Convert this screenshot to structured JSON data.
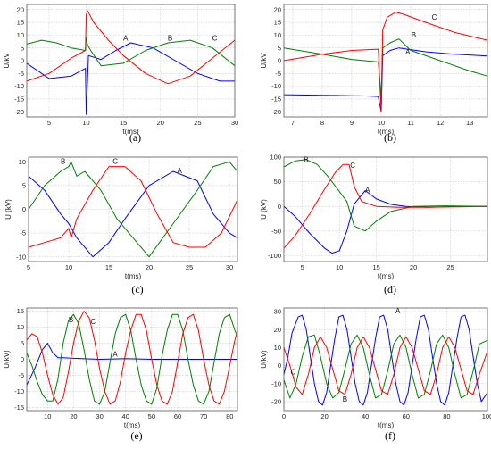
{
  "chart_data": [
    {
      "type": "line",
      "caption": "(a)",
      "xlabel": "t(ms)",
      "ylabel": "U/kV",
      "xlim": [
        2,
        30
      ],
      "ylim": [
        -22,
        22
      ],
      "xticks": [
        5,
        10,
        15,
        20,
        25,
        30
      ],
      "yticks": [
        -20,
        -15,
        -10,
        -5,
        0,
        5,
        10,
        15,
        20
      ],
      "grid": true,
      "annotations": [
        {
          "text": "A",
          "x": 15.3,
          "y": 7.8
        },
        {
          "text": "B",
          "x": 21.3,
          "y": 7.8
        },
        {
          "text": "C",
          "x": 27.3,
          "y": 7.8
        }
      ],
      "series": [
        {
          "name": "A",
          "color": "#0000ff",
          "x": [
            2,
            5,
            8,
            9.9,
            10,
            10.3,
            12,
            14,
            16,
            19,
            22,
            25,
            28,
            30
          ],
          "y": [
            -1,
            -7,
            -6,
            -3,
            -21,
            2,
            0.5,
            4,
            7,
            5,
            0,
            -5,
            -8,
            -8
          ]
        },
        {
          "name": "B",
          "color": "#008000",
          "x": [
            2,
            4,
            6,
            8,
            9.9,
            10,
            10.2,
            10.6,
            12,
            15,
            18,
            21,
            24,
            27,
            30
          ],
          "y": [
            6.5,
            8,
            7,
            5,
            4,
            9,
            6,
            4,
            -2,
            -1,
            4,
            7,
            8,
            5,
            -2
          ]
        },
        {
          "name": "C",
          "color": "#ff0000",
          "x": [
            2,
            5,
            8,
            9.9,
            10,
            10.2,
            11,
            13,
            15,
            18,
            21,
            24,
            27,
            30
          ],
          "y": [
            -8,
            -5,
            1,
            4,
            18,
            19.5,
            15,
            8,
            2,
            -5,
            -9,
            -6,
            1,
            8
          ]
        }
      ]
    },
    {
      "type": "line",
      "caption": "(b)",
      "xlabel": "t(ms)",
      "ylabel": "U/kV",
      "xlim": [
        6.7,
        13.6
      ],
      "ylim": [
        -22,
        22
      ],
      "xticks": [
        7,
        8,
        9,
        10,
        11,
        12,
        13
      ],
      "yticks": [
        -20,
        -15,
        -10,
        -5,
        0,
        5,
        10,
        15,
        20
      ],
      "grid": true,
      "annotations": [
        {
          "text": "C",
          "x": 11.8,
          "y": 16
        },
        {
          "text": "B",
          "x": 11.1,
          "y": 9
        },
        {
          "text": "A",
          "x": 10.9,
          "y": 2.5
        }
      ],
      "series": [
        {
          "name": "A",
          "color": "#0000ff",
          "x": [
            6.7,
            8,
            9.5,
            9.9,
            10,
            10.05,
            10.3,
            10.6,
            11.5,
            12.5,
            13.6
          ],
          "y": [
            -13.3,
            -13.5,
            -13.8,
            -14,
            -20,
            2,
            4,
            5,
            3.5,
            2.5,
            1.8
          ]
        },
        {
          "name": "B",
          "color": "#008000",
          "x": [
            6.7,
            8,
            9,
            9.9,
            10,
            10.05,
            10.3,
            10.6,
            11,
            12,
            13,
            13.6
          ],
          "y": [
            5,
            2.5,
            0.5,
            -0.5,
            -14,
            5,
            7,
            8.5,
            4,
            0,
            -4,
            -6
          ]
        },
        {
          "name": "C",
          "color": "#ff0000",
          "x": [
            6.7,
            8,
            9,
            9.9,
            10,
            10.05,
            10.2,
            10.5,
            10.8,
            11.5,
            12.5,
            13.6
          ],
          "y": [
            0,
            2.5,
            4,
            4.5,
            -20,
            12,
            17,
            19,
            18,
            15,
            11,
            8
          ]
        }
      ]
    },
    {
      "type": "line",
      "caption": "(c)",
      "xlabel": "t(ms)",
      "ylabel": "U (kV)",
      "xlim": [
        5,
        31
      ],
      "ylim": [
        -11,
        11
      ],
      "xticks": [
        5,
        10,
        15,
        20,
        25,
        30
      ],
      "yticks": [
        -10,
        -5,
        0,
        5,
        10
      ],
      "grid": true,
      "annotations": [
        {
          "text": "B",
          "x": 9.3,
          "y": 9.6
        },
        {
          "text": "C",
          "x": 15.8,
          "y": 9.6
        },
        {
          "text": "A",
          "x": 23.8,
          "y": 7.6
        }
      ],
      "series": [
        {
          "name": "A",
          "color": "#0000ff",
          "x": [
            5,
            7,
            9,
            10,
            11,
            13,
            15,
            17,
            20,
            23,
            26,
            28,
            30,
            31
          ],
          "y": [
            7,
            4,
            -1,
            -3,
            -6,
            -10,
            -7,
            -2,
            5,
            8,
            6,
            -1,
            -5,
            -6
          ]
        },
        {
          "name": "B",
          "color": "#008000",
          "x": [
            5,
            7,
            9,
            10,
            10.3,
            11,
            12,
            14,
            16,
            18,
            20,
            23,
            26,
            28,
            30,
            31
          ],
          "y": [
            0,
            5,
            8,
            9,
            10,
            7,
            8,
            4,
            -2,
            -6,
            -10,
            -3,
            4,
            9,
            10,
            8
          ]
        },
        {
          "name": "C",
          "color": "#ff0000",
          "x": [
            5,
            7,
            9,
            10,
            10.3,
            11,
            13,
            15,
            17,
            19,
            21,
            23,
            25,
            27,
            29,
            31
          ],
          "y": [
            -8,
            -7,
            -6,
            -4,
            -6,
            -2,
            4,
            9,
            9,
            6,
            -1,
            -7,
            -8,
            -8,
            -5,
            2
          ]
        }
      ]
    },
    {
      "type": "line",
      "caption": "(d)",
      "xlabel": "t(ms)",
      "ylabel": "U (kV)",
      "xlim": [
        2.5,
        30
      ],
      "ylim": [
        -112,
        100
      ],
      "xticks": [
        5,
        10,
        15,
        20,
        25
      ],
      "yticks": [
        -100,
        -50,
        0,
        50,
        100
      ],
      "grid": true,
      "annotations": [
        {
          "text": "B",
          "x": 5.5,
          "y": 90
        },
        {
          "text": "C",
          "x": 11.8,
          "y": 78
        },
        {
          "text": "A",
          "x": 13.8,
          "y": 28
        }
      ],
      "series": [
        {
          "name": "A",
          "color": "#0000ff",
          "x": [
            2.5,
            4,
            6,
            8,
            9,
            10,
            11,
            12,
            13.5,
            15,
            17,
            19,
            22,
            26,
            30
          ],
          "y": [
            0,
            -20,
            -55,
            -85,
            -95,
            -90,
            -50,
            5,
            32,
            15,
            4,
            0,
            -2,
            0,
            0
          ]
        },
        {
          "name": "B",
          "color": "#008000",
          "x": [
            2.5,
            4,
            5.5,
            7,
            8.5,
            10,
            11,
            12,
            13.5,
            15,
            17,
            20,
            24,
            30
          ],
          "y": [
            80,
            92,
            95,
            85,
            60,
            30,
            10,
            -40,
            -50,
            -30,
            -10,
            0,
            1,
            0
          ]
        },
        {
          "name": "C",
          "color": "#ff0000",
          "x": [
            2.5,
            4,
            6,
            8,
            9.5,
            10.5,
            11.3,
            12,
            13,
            15,
            18,
            22,
            26,
            30
          ],
          "y": [
            -85,
            -60,
            -15,
            35,
            70,
            85,
            85,
            40,
            10,
            0,
            -2,
            -2,
            -1,
            0
          ]
        }
      ]
    },
    {
      "type": "line",
      "caption": "(e)",
      "xlabel": "t(ms)",
      "ylabel": "U(kV)",
      "xlim": [
        2,
        83
      ],
      "ylim": [
        -16,
        16
      ],
      "xticks": [
        10,
        20,
        30,
        40,
        50,
        60,
        70,
        80
      ],
      "yticks": [
        -15,
        -10,
        -5,
        0,
        5,
        10,
        15
      ],
      "grid": true,
      "annotations": [
        {
          "text": "B",
          "x": 19,
          "y": 11.5
        },
        {
          "text": "C",
          "x": 27.5,
          "y": 11
        },
        {
          "text": "A",
          "x": 36,
          "y": 0.8
        }
      ],
      "series": [
        {
          "name": "A",
          "color": "#0000ff",
          "x": [
            2,
            5,
            8,
            10,
            12,
            14,
            16,
            20,
            30,
            40,
            50,
            60,
            70,
            83
          ],
          "y": [
            -8,
            -3,
            3,
            5,
            2,
            0.5,
            0.5,
            0.3,
            0,
            0.2,
            0,
            0,
            0,
            0
          ]
        },
        {
          "name": "B",
          "color": "#008000",
          "x": [
            2,
            4,
            6,
            8,
            10,
            12,
            14,
            16,
            18,
            20,
            22,
            24,
            26,
            28,
            30,
            32,
            34,
            36,
            38,
            40,
            42,
            44,
            46,
            48,
            50,
            52,
            54,
            56,
            58,
            60,
            62,
            64,
            66,
            68,
            70,
            72,
            74,
            76,
            78,
            80,
            82,
            83
          ],
          "y": [
            2,
            -2,
            -7,
            -11,
            -13,
            -13,
            -6,
            5,
            12,
            14,
            11,
            3,
            -6,
            -13,
            -14,
            -10,
            -1,
            8,
            13,
            14,
            9,
            0,
            -8,
            -13,
            -14,
            -9,
            1,
            9,
            14,
            14,
            9,
            0,
            -8,
            -13,
            -14,
            -10,
            -1,
            8,
            13,
            14,
            9,
            7
          ]
        },
        {
          "name": "C",
          "color": "#ff0000",
          "x": [
            2,
            4,
            6,
            8,
            10,
            12,
            14,
            16,
            18,
            20,
            22,
            24,
            26,
            28,
            30,
            32,
            34,
            36,
            38,
            40,
            42,
            44,
            46,
            48,
            50,
            52,
            54,
            56,
            58,
            60,
            62,
            64,
            66,
            68,
            70,
            72,
            74,
            76,
            78,
            80,
            82,
            83
          ],
          "y": [
            6,
            8,
            7,
            2,
            -5,
            -11,
            -14,
            -12,
            -4,
            5,
            12,
            15,
            13,
            6,
            -3,
            -10,
            -14,
            -13,
            -7,
            2,
            9,
            14,
            14,
            9,
            0,
            -8,
            -13,
            -14,
            -10,
            -1,
            8,
            13,
            14,
            9,
            0,
            -8,
            -13,
            -14,
            -10,
            -2,
            6,
            9
          ]
        }
      ]
    },
    {
      "type": "line",
      "caption": "(f)",
      "xlabel": "t(ms)",
      "ylabel": "U(kV)",
      "xlim": [
        0,
        100
      ],
      "ylim": [
        -25,
        32
      ],
      "xticks": [
        0,
        20,
        40,
        60,
        80,
        100
      ],
      "yticks": [
        -20,
        -10,
        0,
        10,
        20,
        30
      ],
      "grid": true,
      "annotations": [
        {
          "text": "A",
          "x": 56,
          "y": 29
        },
        {
          "text": "C",
          "x": 4.5,
          "y": -5
        },
        {
          "text": "B",
          "x": 30,
          "y": -20
        }
      ],
      "series": [
        {
          "name": "A",
          "color": "#0000ff",
          "x": [
            0,
            2,
            4,
            7,
            9,
            11,
            13,
            15,
            17,
            19,
            21,
            23,
            25,
            27,
            29,
            31,
            33,
            35,
            37,
            39,
            41,
            43,
            45,
            47,
            49,
            51,
            53,
            55,
            57,
            59,
            61,
            63,
            65,
            67,
            69,
            71,
            73,
            75,
            77,
            79,
            81,
            83,
            85,
            87,
            89,
            91,
            93,
            95,
            97,
            100
          ],
          "y": [
            -5,
            5,
            18,
            27,
            28,
            20,
            5,
            -10,
            -20,
            -22,
            -15,
            0,
            15,
            27,
            28,
            20,
            5,
            -10,
            -20,
            -22,
            -15,
            0,
            15,
            27,
            28,
            20,
            5,
            -10,
            -20,
            -22,
            -15,
            0,
            15,
            27,
            28,
            20,
            5,
            -10,
            -20,
            -22,
            -15,
            0,
            15,
            27,
            28,
            20,
            5,
            -10,
            -20,
            -15
          ]
        },
        {
          "name": "B",
          "color": "#008000",
          "x": [
            0,
            3,
            6,
            9,
            12,
            15,
            18,
            21,
            24,
            27,
            30,
            33,
            36,
            39,
            42,
            45,
            48,
            51,
            54,
            57,
            60,
            63,
            66,
            69,
            72,
            75,
            78,
            81,
            84,
            87,
            90,
            93,
            96,
            100
          ],
          "y": [
            -8,
            -18,
            -10,
            5,
            16,
            17,
            5,
            -10,
            -18,
            -15,
            -2,
            12,
            17,
            10,
            -5,
            -18,
            -16,
            -3,
            12,
            17,
            10,
            -5,
            -18,
            -16,
            -3,
            12,
            17,
            10,
            -5,
            -18,
            -16,
            -3,
            12,
            14
          ]
        },
        {
          "name": "C",
          "color": "#ff0000",
          "x": [
            0,
            3,
            6,
            9,
            12,
            15,
            18,
            21,
            24,
            27,
            30,
            33,
            36,
            39,
            42,
            45,
            48,
            51,
            54,
            57,
            60,
            63,
            66,
            69,
            72,
            75,
            78,
            81,
            84,
            87,
            90,
            93,
            96,
            100
          ],
          "y": [
            10,
            0,
            -12,
            -16,
            -5,
            10,
            16,
            10,
            -2,
            -14,
            -16,
            -5,
            10,
            16,
            10,
            -2,
            -14,
            -16,
            -5,
            10,
            16,
            10,
            -2,
            -14,
            -16,
            -5,
            10,
            16,
            10,
            -2,
            -14,
            -16,
            -5,
            8
          ]
        }
      ]
    }
  ]
}
